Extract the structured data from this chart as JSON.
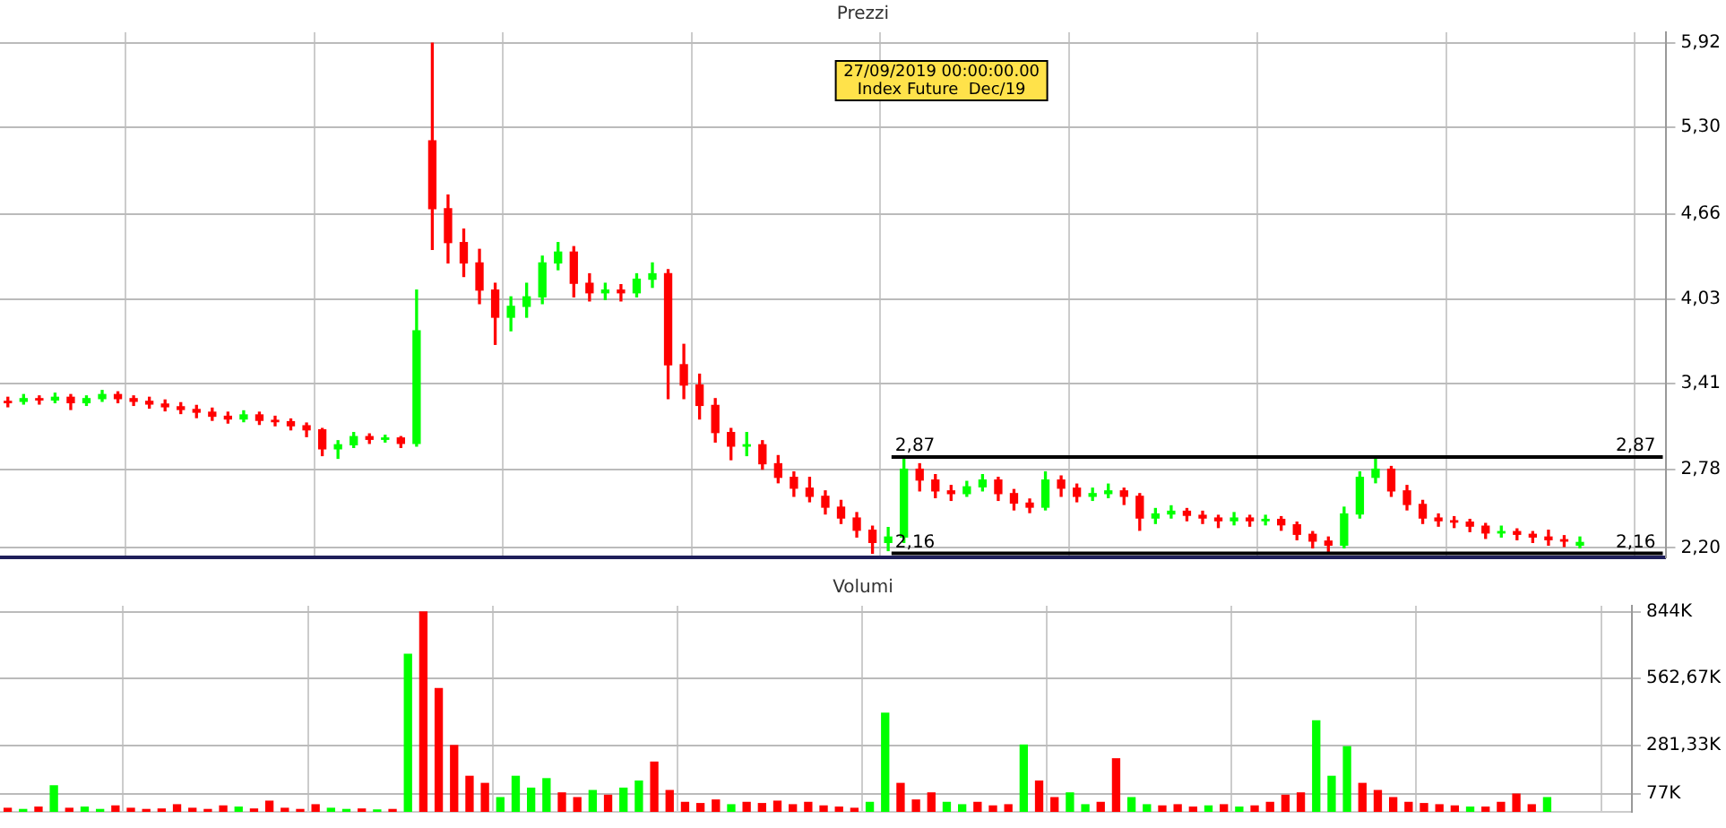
{
  "chart_data": [
    {
      "type": "candlestick",
      "title": "Prezzi",
      "tick_labels": "y",
      "grid": true,
      "annotations": [
        "27/09/2019 00:00:00.00",
        "Index Future  Dec/19"
      ],
      "ref_lines": [
        {
          "axis": "y",
          "value": 2.87,
          "label": "2,87",
          "color": "#000000"
        },
        {
          "axis": "y",
          "value": 2.16,
          "label": "2,16",
          "color": "#000000"
        }
      ],
      "ylim": [
        2.13,
        6.0
      ],
      "yticks": [
        {
          "value": 2.2,
          "label": "2,20"
        },
        {
          "value": 2.78,
          "label": "2,78"
        },
        {
          "value": 3.41,
          "label": "3,41"
        },
        {
          "value": 4.03,
          "label": "4,03"
        },
        {
          "value": 4.66,
          "label": "4,66"
        },
        {
          "value": 5.3,
          "label": "5,30"
        },
        {
          "value": 5.92,
          "label": "5,92"
        }
      ],
      "categories": [
        null,
        null,
        null,
        null,
        null,
        null,
        null,
        null,
        null,
        null,
        null,
        null,
        null,
        null,
        null,
        null,
        null,
        null,
        null,
        null,
        null,
        null,
        null,
        null,
        null,
        null,
        null,
        null,
        null,
        null,
        null,
        null,
        null,
        null,
        null,
        null,
        null,
        null,
        null,
        null,
        null,
        null,
        null,
        null,
        null,
        null,
        null,
        null,
        null,
        null,
        null,
        null,
        null,
        null,
        null,
        null,
        null,
        null,
        null,
        null,
        null,
        null,
        null,
        null,
        null,
        null,
        null,
        null,
        null,
        null,
        null,
        null,
        null,
        null,
        null,
        null,
        null,
        null,
        null,
        null,
        null,
        null,
        null,
        null,
        null,
        null,
        null,
        null,
        null,
        null,
        null,
        null,
        null,
        null,
        null,
        null,
        null,
        null,
        null,
        null,
        null,
        null,
        null,
        null,
        null,
        null
      ],
      "ohlc": [
        [
          3.27,
          3.31,
          3.24,
          3.28
        ],
        [
          3.28,
          3.33,
          3.26,
          3.3
        ],
        [
          3.3,
          3.32,
          3.26,
          3.29
        ],
        [
          3.29,
          3.34,
          3.27,
          3.31
        ],
        [
          3.31,
          3.33,
          3.22,
          3.27
        ],
        [
          3.27,
          3.32,
          3.25,
          3.3
        ],
        [
          3.3,
          3.36,
          3.28,
          3.33
        ],
        [
          3.33,
          3.35,
          3.27,
          3.3
        ],
        [
          3.3,
          3.32,
          3.25,
          3.28
        ],
        [
          3.28,
          3.31,
          3.23,
          3.26
        ],
        [
          3.26,
          3.29,
          3.21,
          3.24
        ],
        [
          3.24,
          3.27,
          3.19,
          3.22
        ],
        [
          3.22,
          3.25,
          3.16,
          3.2
        ],
        [
          3.2,
          3.23,
          3.14,
          3.17
        ],
        [
          3.17,
          3.2,
          3.12,
          3.15
        ],
        [
          3.15,
          3.21,
          3.13,
          3.18
        ],
        [
          3.18,
          3.2,
          3.11,
          3.14
        ],
        [
          3.14,
          3.17,
          3.1,
          3.13
        ],
        [
          3.13,
          3.15,
          3.07,
          3.1
        ],
        [
          3.1,
          3.12,
          3.02,
          3.07
        ],
        [
          3.07,
          3.08,
          2.88,
          2.93
        ],
        [
          2.93,
          2.99,
          2.86,
          2.96
        ],
        [
          2.96,
          3.05,
          2.94,
          3.02
        ],
        [
          3.02,
          3.04,
          2.97,
          3.0
        ],
        [
          3.0,
          3.03,
          2.98,
          3.01
        ],
        [
          3.01,
          3.02,
          2.94,
          2.97
        ],
        [
          2.97,
          4.1,
          2.95,
          3.8
        ],
        [
          5.2,
          5.92,
          4.4,
          4.7
        ],
        [
          4.7,
          4.8,
          4.3,
          4.45
        ],
        [
          4.45,
          4.55,
          4.2,
          4.3
        ],
        [
          4.3,
          4.4,
          4.0,
          4.1
        ],
        [
          4.1,
          4.15,
          3.7,
          3.9
        ],
        [
          3.9,
          4.05,
          3.8,
          3.98
        ],
        [
          3.98,
          4.15,
          3.9,
          4.05
        ],
        [
          4.05,
          4.35,
          4.0,
          4.3
        ],
        [
          4.3,
          4.45,
          4.25,
          4.38
        ],
        [
          4.38,
          4.42,
          4.05,
          4.15
        ],
        [
          4.15,
          4.22,
          4.02,
          4.08
        ],
        [
          4.08,
          4.15,
          4.03,
          4.1
        ],
        [
          4.1,
          4.14,
          4.02,
          4.08
        ],
        [
          4.08,
          4.22,
          4.05,
          4.18
        ],
        [
          4.18,
          4.3,
          4.12,
          4.22
        ],
        [
          4.22,
          4.25,
          3.3,
          3.55
        ],
        [
          3.55,
          3.7,
          3.3,
          3.4
        ],
        [
          3.4,
          3.48,
          3.15,
          3.25
        ],
        [
          3.25,
          3.3,
          2.98,
          3.05
        ],
        [
          3.05,
          3.08,
          2.85,
          2.95
        ],
        [
          2.95,
          3.05,
          2.88,
          2.96
        ],
        [
          2.96,
          2.99,
          2.78,
          2.82
        ],
        [
          2.82,
          2.88,
          2.68,
          2.72
        ],
        [
          2.72,
          2.76,
          2.58,
          2.64
        ],
        [
          2.64,
          2.72,
          2.54,
          2.58
        ],
        [
          2.58,
          2.62,
          2.45,
          2.5
        ],
        [
          2.5,
          2.55,
          2.38,
          2.42
        ],
        [
          2.42,
          2.46,
          2.28,
          2.33
        ],
        [
          2.33,
          2.36,
          2.16,
          2.24
        ],
        [
          2.24,
          2.35,
          2.18,
          2.28
        ],
        [
          2.28,
          2.87,
          2.24,
          2.78
        ],
        [
          2.78,
          2.82,
          2.62,
          2.7
        ],
        [
          2.7,
          2.74,
          2.57,
          2.62
        ],
        [
          2.62,
          2.66,
          2.55,
          2.6
        ],
        [
          2.6,
          2.69,
          2.58,
          2.65
        ],
        [
          2.65,
          2.74,
          2.62,
          2.7
        ],
        [
          2.7,
          2.72,
          2.55,
          2.6
        ],
        [
          2.6,
          2.63,
          2.48,
          2.53
        ],
        [
          2.53,
          2.56,
          2.46,
          2.5
        ],
        [
          2.5,
          2.76,
          2.48,
          2.7
        ],
        [
          2.7,
          2.73,
          2.58,
          2.64
        ],
        [
          2.64,
          2.67,
          2.54,
          2.58
        ],
        [
          2.58,
          2.64,
          2.55,
          2.6
        ],
        [
          2.6,
          2.67,
          2.57,
          2.62
        ],
        [
          2.62,
          2.64,
          2.52,
          2.58
        ],
        [
          2.58,
          2.6,
          2.33,
          2.42
        ],
        [
          2.42,
          2.49,
          2.38,
          2.45
        ],
        [
          2.45,
          2.51,
          2.42,
          2.47
        ],
        [
          2.47,
          2.49,
          2.4,
          2.44
        ],
        [
          2.44,
          2.47,
          2.38,
          2.42
        ],
        [
          2.42,
          2.44,
          2.35,
          2.4
        ],
        [
          2.4,
          2.46,
          2.37,
          2.42
        ],
        [
          2.42,
          2.44,
          2.36,
          2.4
        ],
        [
          2.4,
          2.44,
          2.37,
          2.41
        ],
        [
          2.41,
          2.43,
          2.33,
          2.37
        ],
        [
          2.37,
          2.39,
          2.26,
          2.3
        ],
        [
          2.3,
          2.32,
          2.2,
          2.25
        ],
        [
          2.25,
          2.28,
          2.16,
          2.22
        ],
        [
          2.22,
          2.5,
          2.2,
          2.45
        ],
        [
          2.45,
          2.76,
          2.42,
          2.72
        ],
        [
          2.72,
          2.87,
          2.68,
          2.78
        ],
        [
          2.78,
          2.8,
          2.58,
          2.62
        ],
        [
          2.62,
          2.66,
          2.48,
          2.52
        ],
        [
          2.52,
          2.55,
          2.38,
          2.42
        ],
        [
          2.42,
          2.45,
          2.36,
          2.4
        ],
        [
          2.4,
          2.43,
          2.35,
          2.39
        ],
        [
          2.39,
          2.41,
          2.32,
          2.36
        ],
        [
          2.36,
          2.38,
          2.27,
          2.31
        ],
        [
          2.31,
          2.36,
          2.28,
          2.32
        ],
        [
          2.32,
          2.34,
          2.26,
          2.3
        ],
        [
          2.3,
          2.32,
          2.24,
          2.28
        ],
        [
          2.28,
          2.33,
          2.22,
          2.26
        ],
        [
          2.26,
          2.29,
          2.21,
          2.25
        ],
        [
          2.22,
          2.28,
          2.2,
          2.24
        ],
        null,
        null,
        null,
        null,
        null
      ],
      "colors": [
        "#ff0000",
        "#00ff00",
        "#ff0000",
        "#00ff00",
        "#ff0000",
        "#00ff00",
        "#00ff00",
        "#ff0000",
        "#ff0000",
        "#ff0000",
        "#ff0000",
        "#ff0000",
        "#ff0000",
        "#ff0000",
        "#ff0000",
        "#00ff00",
        "#ff0000",
        "#ff0000",
        "#ff0000",
        "#ff0000",
        "#ff0000",
        "#00ff00",
        "#00ff00",
        "#ff0000",
        "#00ff00",
        "#ff0000",
        "#00ff00",
        "#ff0000",
        "#ff0000",
        "#ff0000",
        "#ff0000",
        "#ff0000",
        "#00ff00",
        "#00ff00",
        "#00ff00",
        "#00ff00",
        "#ff0000",
        "#ff0000",
        "#00ff00",
        "#ff0000",
        "#00ff00",
        "#00ff00",
        "#ff0000",
        "#ff0000",
        "#ff0000",
        "#ff0000",
        "#ff0000",
        "#00ff00",
        "#ff0000",
        "#ff0000",
        "#ff0000",
        "#ff0000",
        "#ff0000",
        "#ff0000",
        "#ff0000",
        "#ff0000",
        "#00ff00",
        "#00ff00",
        "#ff0000",
        "#ff0000",
        "#ff0000",
        "#00ff00",
        "#00ff00",
        "#ff0000",
        "#ff0000",
        "#ff0000",
        "#00ff00",
        "#ff0000",
        "#ff0000",
        "#00ff00",
        "#00ff00",
        "#ff0000",
        "#ff0000",
        "#00ff00",
        "#00ff00",
        "#ff0000",
        "#ff0000",
        "#ff0000",
        "#00ff00",
        "#ff0000",
        "#00ff00",
        "#ff0000",
        "#ff0000",
        "#ff0000",
        "#ff0000",
        "#00ff00",
        "#00ff00",
        "#00ff00",
        "#ff0000",
        "#ff0000",
        "#ff0000",
        "#ff0000",
        "#ff0000",
        "#ff0000",
        "#ff0000",
        "#00ff00",
        "#ff0000",
        "#ff0000",
        "#ff0000",
        "#ff0000",
        "#00ff00",
        null,
        null,
        null,
        null,
        null
      ]
    },
    {
      "type": "bar",
      "title": "Volumi",
      "tick_labels": "y",
      "grid": true,
      "ylim": [
        0,
        870
      ],
      "yticks": [
        {
          "value": 77,
          "label": "77K"
        },
        {
          "value": 281.33,
          "label": "281,33K"
        },
        {
          "value": 562.67,
          "label": "562,67K"
        },
        {
          "value": 844,
          "label": "844K"
        }
      ],
      "categories": [
        null,
        null,
        null,
        null,
        null,
        null,
        null,
        null,
        null,
        null,
        null,
        null,
        null,
        null,
        null,
        null,
        null,
        null,
        null,
        null,
        null,
        null,
        null,
        null,
        null,
        null,
        null,
        null,
        null,
        null,
        null,
        null,
        null,
        null,
        null,
        null,
        null,
        null,
        null,
        null,
        null,
        null,
        null,
        null,
        null,
        null,
        null,
        null,
        null,
        null,
        null,
        null,
        null,
        null,
        null,
        null,
        null,
        null,
        null,
        null,
        null,
        null,
        null,
        null,
        null,
        null,
        null,
        null,
        null,
        null,
        null,
        null,
        null,
        null,
        null,
        null,
        null,
        null,
        null,
        null,
        null,
        null,
        null,
        null,
        null,
        null,
        null,
        null,
        null,
        null,
        null,
        null,
        null,
        null,
        null,
        null,
        null,
        null,
        null,
        null,
        null,
        null,
        null,
        null,
        null,
        null
      ],
      "values": [
        15,
        10,
        20,
        110,
        15,
        20,
        10,
        25,
        15,
        10,
        12,
        30,
        15,
        10,
        25,
        20,
        12,
        45,
        15,
        10,
        30,
        15,
        10,
        12,
        8,
        10,
        665,
        844,
        520,
        280,
        150,
        120,
        60,
        150,
        100,
        140,
        80,
        60,
        90,
        70,
        100,
        130,
        210,
        90,
        40,
        35,
        50,
        30,
        40,
        35,
        45,
        30,
        40,
        25,
        20,
        15,
        40,
        416,
        120,
        50,
        80,
        40,
        30,
        40,
        25,
        30,
        282,
        130,
        60,
        80,
        30,
        40,
        224,
        60,
        30,
        25,
        30,
        20,
        25,
        30,
        20,
        25,
        40,
        70,
        80,
        384,
        150,
        275,
        120,
        90,
        60,
        40,
        35,
        30,
        25,
        20,
        20,
        40,
        75,
        30,
        60,
        null,
        null,
        null,
        null,
        null
      ],
      "colors": [
        "#ff0000",
        "#00ff00",
        "#ff0000",
        "#00ff00",
        "#ff0000",
        "#00ff00",
        "#00ff00",
        "#ff0000",
        "#ff0000",
        "#ff0000",
        "#ff0000",
        "#ff0000",
        "#ff0000",
        "#ff0000",
        "#ff0000",
        "#00ff00",
        "#ff0000",
        "#ff0000",
        "#ff0000",
        "#ff0000",
        "#ff0000",
        "#00ff00",
        "#00ff00",
        "#ff0000",
        "#00ff00",
        "#ff0000",
        "#00ff00",
        "#ff0000",
        "#ff0000",
        "#ff0000",
        "#ff0000",
        "#ff0000",
        "#00ff00",
        "#00ff00",
        "#00ff00",
        "#00ff00",
        "#ff0000",
        "#ff0000",
        "#00ff00",
        "#ff0000",
        "#00ff00",
        "#00ff00",
        "#ff0000",
        "#ff0000",
        "#ff0000",
        "#ff0000",
        "#ff0000",
        "#00ff00",
        "#ff0000",
        "#ff0000",
        "#ff0000",
        "#ff0000",
        "#ff0000",
        "#ff0000",
        "#ff0000",
        "#ff0000",
        "#00ff00",
        "#00ff00",
        "#ff0000",
        "#ff0000",
        "#ff0000",
        "#00ff00",
        "#00ff00",
        "#ff0000",
        "#ff0000",
        "#ff0000",
        "#00ff00",
        "#ff0000",
        "#ff0000",
        "#00ff00",
        "#00ff00",
        "#ff0000",
        "#ff0000",
        "#00ff00",
        "#00ff00",
        "#ff0000",
        "#ff0000",
        "#ff0000",
        "#00ff00",
        "#ff0000",
        "#00ff00",
        "#ff0000",
        "#ff0000",
        "#ff0000",
        "#ff0000",
        "#00ff00",
        "#00ff00",
        "#00ff00",
        "#ff0000",
        "#ff0000",
        "#ff0000",
        "#ff0000",
        "#ff0000",
        "#ff0000",
        "#ff0000",
        "#00ff00",
        "#ff0000",
        "#ff0000",
        "#ff0000",
        "#ff0000",
        "#00ff00",
        null,
        null,
        null,
        null,
        null
      ]
    }
  ]
}
